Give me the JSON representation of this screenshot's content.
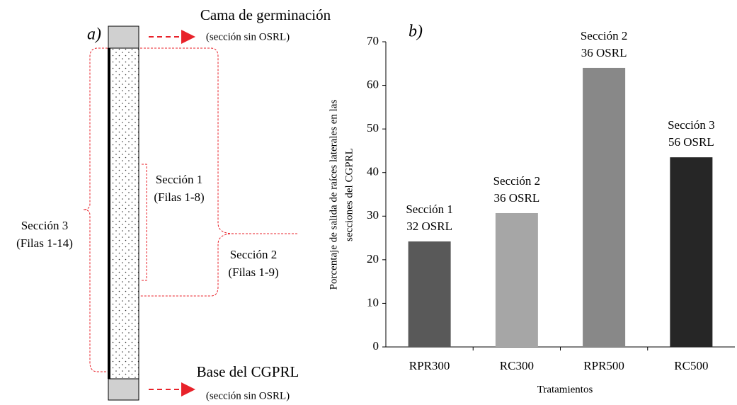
{
  "diagram": {
    "label": "a)",
    "top_title": "Cama de germinación",
    "top_note": "(sección sin OSRL)",
    "bottom_title": "Base del CGPRL",
    "bottom_note": "(sección sin OSRL)",
    "section1": [
      "Sección 1",
      "(Filas 1-8)"
    ],
    "section2": [
      "Sección 2",
      "(Filas 1-9)"
    ],
    "section3": [
      "Sección 3",
      "(Filas 1-14)"
    ]
  },
  "chart_data": {
    "type": "bar",
    "label": "b)",
    "ylabel": [
      "Porcentaje  de  salida  de  raíces  laterales   en  las",
      "secciones del CGPRL"
    ],
    "xlabel": "Tratamientos",
    "categories": [
      "RPR300",
      "RC300",
      "RPR500",
      "RC500"
    ],
    "values": [
      24.2,
      30.7,
      64,
      43.5
    ],
    "colors": [
      "#595959",
      "#a6a6a6",
      "#888888",
      "#262626"
    ],
    "annotations": [
      [
        "Sección 1",
        "32 OSRL"
      ],
      [
        "Sección 2",
        "36 OSRL"
      ],
      [
        "Sección 2",
        "36 OSRL"
      ],
      [
        "Sección 3",
        "56 OSRL"
      ]
    ],
    "ylim": [
      0,
      70
    ],
    "yticks": [
      0,
      10,
      20,
      30,
      40,
      50,
      60,
      70
    ]
  }
}
